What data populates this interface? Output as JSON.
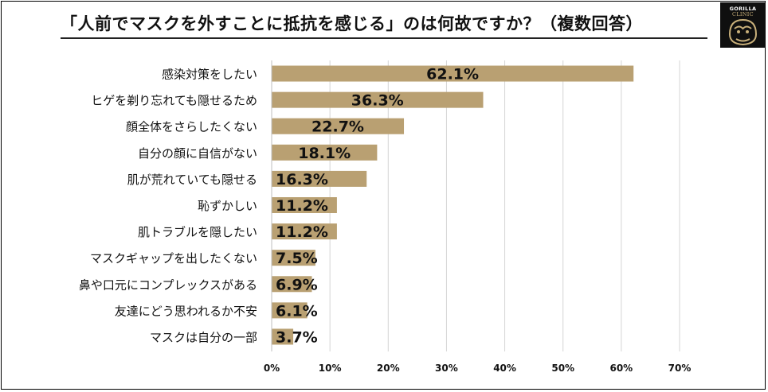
{
  "title": "「人前でマスクを外すことに抵抗を感じる」のは何故ですか？（複数回答）",
  "logo": {
    "line1": "GORILLA",
    "line2": "CLINIC"
  },
  "colors": {
    "bar": "#b9a072",
    "grid": "#d4d4d4",
    "text": "#111111"
  },
  "chart_data": {
    "type": "bar",
    "orientation": "horizontal",
    "title": "「人前でマスクを外すことに抵抗を感じる」のは何故ですか？（複数回答）",
    "categories": [
      "感染対策をしたい",
      "ヒゲを剃り忘れても隠せるため",
      "顔全体をさらしたくない",
      "自分の顔に自信がない",
      "肌が荒れていても隠せる",
      "恥ずかしい",
      "肌トラブルを隠したい",
      "マスクギャップを出したくない",
      "鼻や口元にコンプレックスがある",
      "友達にどう思われるか不安",
      "マスクは自分の一部"
    ],
    "values": [
      62.1,
      36.3,
      22.7,
      18.1,
      16.3,
      11.2,
      11.2,
      7.5,
      6.9,
      6.1,
      3.7
    ],
    "data_labels": [
      "62.1%",
      "36.3%",
      "22.7%",
      "18.1%",
      "16.3%",
      "11.2%",
      "11.2%",
      "7.5%",
      "6.9%",
      "6.1%",
      "3.7%"
    ],
    "xlim": [
      0,
      70
    ],
    "xticks": [
      "0%",
      "10%",
      "20%",
      "30%",
      "40%",
      "50%",
      "60%",
      "70%"
    ],
    "grid": true,
    "legend": "none"
  }
}
